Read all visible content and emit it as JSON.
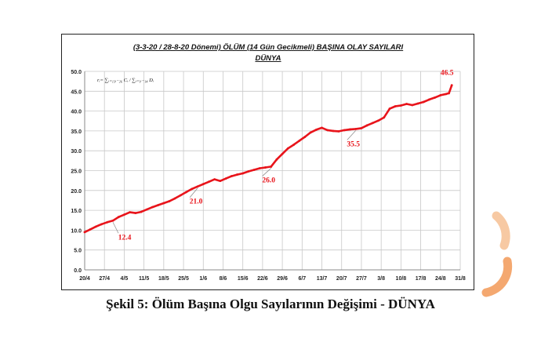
{
  "caption": "Şekil 5: Ölüm Başına Olgu Sayılarının Değişimi - DÜNYA",
  "chart_data": {
    "type": "line",
    "title_line1": "(3-3-20 / 28-8-20 Dönemi) ÖLÜM (14 Gün Gecikmeli) BAŞINA OLAY SAYILARI",
    "title_line2": "DÜNYA",
    "formula": "rᵢ= ∑ᵢ₌₁₃ᵢ₋₂₆ Cᵢ / ∑ᵢ₌₁ᵢ₋₁₄ Dᵢ",
    "x_tick_labels": [
      "20/4",
      "27/4",
      "4/5",
      "11/5",
      "18/5",
      "25/5",
      "1/6",
      "8/6",
      "15/6",
      "22/6",
      "29/6",
      "6/7",
      "13/7",
      "20/7",
      "27/7",
      "3/8",
      "10/8",
      "17/8",
      "24/8",
      "31/8"
    ],
    "x_start": "2020-04-20",
    "x_end": "2020-08-31",
    "ylim": [
      0,
      50
    ],
    "y_ticks": [
      0,
      5,
      10,
      15,
      20,
      25,
      30,
      35,
      40,
      45,
      50
    ],
    "y_tick_labels": [
      "0.0",
      "5.0",
      "10.0",
      "15.0",
      "20.0",
      "25.0",
      "30.0",
      "35.0",
      "40.0",
      "45.0",
      "50.0"
    ],
    "grid": true,
    "series": [
      {
        "color": "#e8141b",
        "x": [
          "2020-04-20",
          "2020-04-22",
          "2020-04-24",
          "2020-04-26",
          "2020-04-28",
          "2020-04-30",
          "2020-05-02",
          "2020-05-04",
          "2020-05-06",
          "2020-05-08",
          "2020-05-10",
          "2020-05-12",
          "2020-05-14",
          "2020-05-16",
          "2020-05-18",
          "2020-05-20",
          "2020-05-22",
          "2020-05-24",
          "2020-05-26",
          "2020-05-28",
          "2020-05-30",
          "2020-06-01",
          "2020-06-03",
          "2020-06-05",
          "2020-06-07",
          "2020-06-09",
          "2020-06-11",
          "2020-06-13",
          "2020-06-15",
          "2020-06-17",
          "2020-06-19",
          "2020-06-21",
          "2020-06-23",
          "2020-06-25",
          "2020-06-27",
          "2020-06-29",
          "2020-07-01",
          "2020-07-03",
          "2020-07-05",
          "2020-07-07",
          "2020-07-09",
          "2020-07-11",
          "2020-07-13",
          "2020-07-15",
          "2020-07-17",
          "2020-07-19",
          "2020-07-21",
          "2020-07-23",
          "2020-07-25",
          "2020-07-27",
          "2020-07-29",
          "2020-07-31",
          "2020-08-02",
          "2020-08-04",
          "2020-08-06",
          "2020-08-08",
          "2020-08-10",
          "2020-08-12",
          "2020-08-14",
          "2020-08-16",
          "2020-08-18",
          "2020-08-20",
          "2020-08-22",
          "2020-08-24",
          "2020-08-26",
          "2020-08-27",
          "2020-08-28"
        ],
        "y": [
          9.5,
          10.2,
          10.9,
          11.5,
          12.0,
          12.4,
          13.3,
          13.9,
          14.5,
          14.3,
          14.6,
          15.2,
          15.8,
          16.3,
          16.8,
          17.3,
          18.0,
          18.8,
          19.6,
          20.4,
          21.0,
          21.6,
          22.2,
          22.8,
          22.4,
          23.0,
          23.6,
          24.0,
          24.3,
          24.8,
          25.2,
          25.6,
          25.8,
          26.0,
          27.8,
          29.2,
          30.6,
          31.5,
          32.5,
          33.5,
          34.6,
          35.3,
          35.8,
          35.2,
          35.0,
          34.9,
          35.2,
          35.4,
          35.5,
          35.7,
          36.4,
          37.0,
          37.6,
          38.4,
          40.6,
          41.2,
          41.4,
          41.8,
          41.5,
          41.9,
          42.3,
          42.9,
          43.4,
          44.0,
          44.3,
          44.5,
          46.5
        ]
      }
    ],
    "annotations": [
      {
        "text": "12.4",
        "x": "2020-04-30",
        "y": 12.4
      },
      {
        "text": "21.0",
        "x": "2020-05-30",
        "y": 21.0
      },
      {
        "text": "26.0",
        "x": "2020-06-25",
        "y": 26.0
      },
      {
        "text": "35.5",
        "x": "2020-07-25",
        "y": 35.5
      },
      {
        "text": "46.5",
        "x": "2020-08-28",
        "y": 46.5
      }
    ]
  }
}
